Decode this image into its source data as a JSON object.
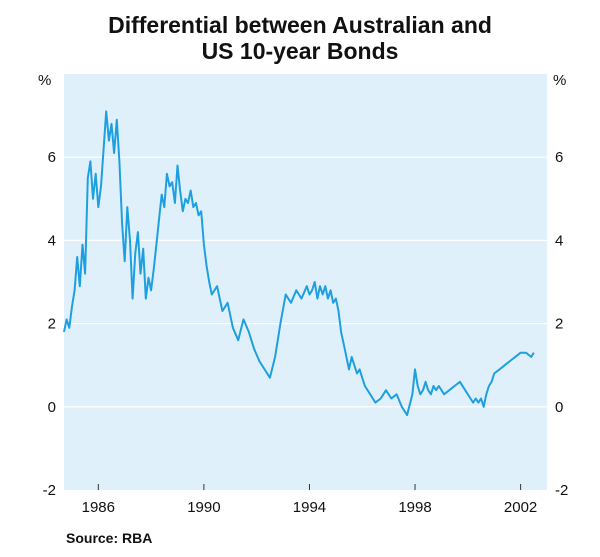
{
  "title_line1": "Differential between Australian and",
  "title_line2": "US 10-year Bonds",
  "unit_left": "%",
  "unit_right": "%",
  "source": "Source: RBA",
  "colors": {
    "panel": "#dff0fa",
    "line": "#1ea0e0",
    "grid": "#ffffff"
  },
  "chart_data": {
    "type": "line",
    "title": "Differential between Australian and US 10-year Bonds",
    "ylabel": "%",
    "ylim": [
      -2,
      8
    ],
    "xlim": [
      1984.7,
      2003.0
    ],
    "yticks": [
      -2,
      0,
      2,
      4,
      6
    ],
    "xticks": [
      1986,
      1990,
      1994,
      1998,
      2002
    ],
    "grid": true,
    "series": [
      {
        "x": [
          1984.7,
          1984.8,
          1984.9,
          1985.0,
          1985.1,
          1985.2,
          1985.3,
          1985.4,
          1985.5,
          1985.6,
          1985.7,
          1985.8,
          1985.9,
          1986.0,
          1986.1,
          1986.2,
          1986.3,
          1986.4,
          1986.5,
          1986.6,
          1986.7,
          1986.8,
          1986.9,
          1987.0,
          1987.1,
          1987.2,
          1987.3,
          1987.4,
          1987.5,
          1987.6,
          1987.7,
          1987.8,
          1987.9,
          1988.0,
          1988.1,
          1988.2,
          1988.3,
          1988.4,
          1988.5,
          1988.6,
          1988.7,
          1988.8,
          1988.9,
          1989.0,
          1989.1,
          1989.2,
          1989.3,
          1989.4,
          1989.5,
          1989.6,
          1989.7,
          1989.8,
          1989.9,
          1990.0,
          1990.1,
          1990.2,
          1990.3,
          1990.5,
          1990.7,
          1990.9,
          1991.1,
          1991.3,
          1991.5,
          1991.7,
          1991.9,
          1992.1,
          1992.3,
          1992.5,
          1992.7,
          1992.9,
          1993.1,
          1993.3,
          1993.5,
          1993.7,
          1993.9,
          1994.0,
          1994.1,
          1994.2,
          1994.3,
          1994.4,
          1994.5,
          1994.6,
          1994.7,
          1994.8,
          1994.9,
          1995.0,
          1995.1,
          1995.2,
          1995.3,
          1995.4,
          1995.5,
          1995.6,
          1995.7,
          1995.8,
          1995.9,
          1996.0,
          1996.1,
          1996.3,
          1996.5,
          1996.7,
          1996.9,
          1997.1,
          1997.3,
          1997.5,
          1997.7,
          1997.9,
          1998.0,
          1998.1,
          1998.2,
          1998.3,
          1998.4,
          1998.5,
          1998.6,
          1998.7,
          1998.8,
          1998.9,
          1999.1,
          1999.3,
          1999.5,
          1999.7,
          1999.9,
          2000.0,
          2000.1,
          2000.2,
          2000.3,
          2000.4,
          2000.5,
          2000.6,
          2000.7,
          2000.8,
          2000.9,
          2001.0,
          2001.2,
          2001.4,
          2001.6,
          2001.8,
          2002.0,
          2002.2,
          2002.4,
          2002.5
        ],
        "values": [
          1.8,
          2.1,
          1.9,
          2.4,
          2.8,
          3.6,
          2.9,
          3.9,
          3.2,
          5.5,
          5.9,
          5.0,
          5.6,
          4.8,
          5.3,
          6.2,
          7.1,
          6.4,
          6.8,
          6.1,
          6.9,
          5.9,
          4.4,
          3.5,
          4.8,
          4.0,
          2.6,
          3.7,
          4.2,
          3.2,
          3.8,
          2.6,
          3.1,
          2.8,
          3.3,
          3.9,
          4.5,
          5.1,
          4.8,
          5.6,
          5.3,
          5.4,
          4.9,
          5.8,
          5.2,
          4.7,
          5.0,
          4.9,
          5.2,
          4.8,
          4.9,
          4.6,
          4.7,
          3.9,
          3.4,
          3.0,
          2.7,
          2.9,
          2.3,
          2.5,
          1.9,
          1.6,
          2.1,
          1.8,
          1.4,
          1.1,
          0.9,
          0.7,
          1.2,
          2.0,
          2.7,
          2.5,
          2.8,
          2.6,
          2.9,
          2.7,
          2.8,
          3.0,
          2.6,
          2.9,
          2.7,
          2.9,
          2.6,
          2.8,
          2.5,
          2.6,
          2.3,
          1.8,
          1.5,
          1.2,
          0.9,
          1.2,
          1.0,
          0.8,
          0.9,
          0.7,
          0.5,
          0.3,
          0.1,
          0.2,
          0.4,
          0.2,
          0.3,
          0.0,
          -0.2,
          0.3,
          0.9,
          0.5,
          0.3,
          0.4,
          0.6,
          0.4,
          0.3,
          0.5,
          0.4,
          0.5,
          0.3,
          0.4,
          0.5,
          0.6,
          0.4,
          0.3,
          0.2,
          0.1,
          0.2,
          0.1,
          0.2,
          0.0,
          0.3,
          0.5,
          0.6,
          0.8,
          0.9,
          1.0,
          1.1,
          1.2,
          1.3,
          1.3,
          1.2,
          1.3
        ]
      }
    ]
  }
}
